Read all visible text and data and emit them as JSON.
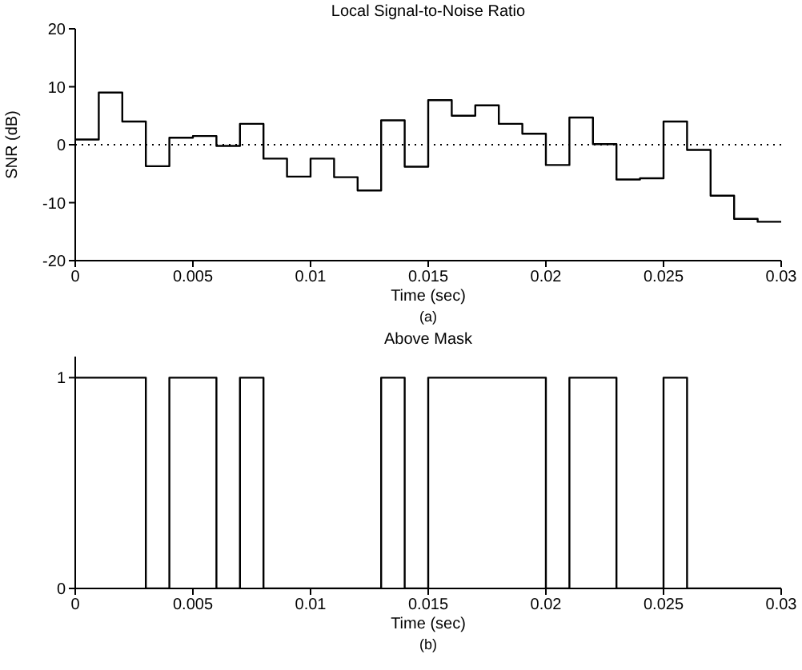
{
  "chart_data": [
    {
      "type": "step",
      "title": "Local Signal-to-Noise Ratio",
      "xlabel": "Time (sec)",
      "ylabel": "SNR (dB)",
      "annotations": [
        "(a)"
      ],
      "x": [
        0,
        0.001,
        0.002,
        0.003,
        0.004,
        0.005,
        0.006,
        0.007,
        0.008,
        0.009,
        0.01,
        0.011,
        0.012,
        0.013,
        0.014,
        0.015,
        0.016,
        0.017,
        0.018,
        0.019,
        0.02,
        0.021,
        0.022,
        0.023,
        0.024,
        0.025,
        0.026,
        0.027,
        0.028,
        0.029,
        0.03
      ],
      "series": [
        {
          "color": "#000000",
          "values": [
            0.9,
            9.0,
            4.0,
            -3.7,
            1.2,
            1.5,
            -0.2,
            3.6,
            -2.4,
            -5.5,
            -2.4,
            -5.6,
            -7.9,
            4.2,
            -3.8,
            7.7,
            5.0,
            6.8,
            3.6,
            1.9,
            -3.5,
            4.7,
            0.1,
            -6.0,
            -5.8,
            4.0,
            -0.9,
            -8.8,
            -12.8,
            -13.3,
            -13.3
          ]
        }
      ],
      "xlim": [
        0,
        0.03
      ],
      "xticks": [
        0,
        0.005,
        0.01,
        0.015,
        0.02,
        0.025,
        0.03
      ],
      "ylim": [
        -20,
        20
      ],
      "yticks": [
        -20,
        -10,
        0,
        10,
        20
      ],
      "ref_lines": [
        {
          "axis": "y",
          "value": 0,
          "color": "#000000",
          "line_style": "dotted"
        }
      ],
      "grid": false,
      "legend": false,
      "marker": "none"
    },
    {
      "type": "step",
      "title": "Above Mask",
      "xlabel": "Time (sec)",
      "annotations": [
        "(b)"
      ],
      "x": [
        0,
        0.001,
        0.002,
        0.003,
        0.004,
        0.005,
        0.006,
        0.007,
        0.008,
        0.009,
        0.01,
        0.011,
        0.012,
        0.013,
        0.014,
        0.015,
        0.016,
        0.017,
        0.018,
        0.019,
        0.02,
        0.021,
        0.022,
        0.023,
        0.024,
        0.025,
        0.026,
        0.027,
        0.028,
        0.029,
        0.03
      ],
      "series": [
        {
          "color": "#000000",
          "values": [
            1,
            1,
            1,
            0,
            1,
            1,
            0,
            1,
            0,
            0,
            0,
            0,
            0,
            1,
            0,
            1,
            1,
            1,
            1,
            1,
            0,
            1,
            1,
            0,
            0,
            1,
            0,
            0,
            0,
            0,
            0
          ]
        }
      ],
      "xlim": [
        0,
        0.03
      ],
      "xticks": [
        0,
        0.005,
        0.01,
        0.015,
        0.02,
        0.025,
        0.03
      ],
      "ylim": [
        0,
        1.1
      ],
      "yticks": [
        0,
        1
      ],
      "grid": false,
      "legend": false,
      "marker": "none"
    }
  ]
}
